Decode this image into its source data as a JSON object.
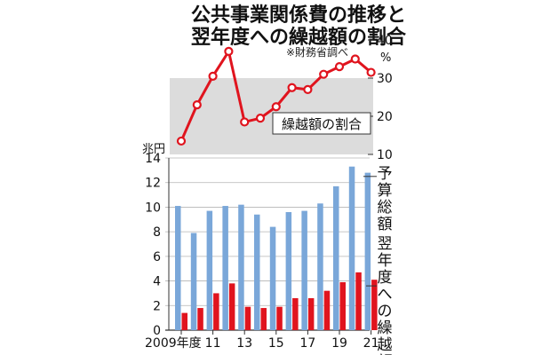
{
  "chart_data": [
    {
      "type": "line",
      "title": [
        "公共事業関係費の",
        "翌年度への繰越額の割合"
      ],
      "title_connector": "推移と",
      "note": "※財務省調べ",
      "series": [
        {
          "name": "繰越額の割合",
          "color": "#e0141e",
          "values": [
            13.5,
            23,
            30.5,
            37,
            18.5,
            19.5,
            22.5,
            27.5,
            27,
            31,
            33,
            35,
            31.5
          ]
        }
      ],
      "x": [
        2009,
        2010,
        2011,
        2012,
        2013,
        2014,
        2015,
        2016,
        2017,
        2018,
        2019,
        2020,
        2021
      ],
      "ylim": [
        10,
        40
      ],
      "yticks": [
        "10",
        "20",
        "30",
        "40"
      ],
      "yunit": "%",
      "shaded_bands": [
        [
          20,
          30
        ],
        [
          10,
          20
        ]
      ]
    },
    {
      "type": "bar",
      "yunit": "兆円",
      "ylim": [
        0,
        14
      ],
      "yticks": [
        "0",
        "2",
        "4",
        "6",
        "8",
        "10",
        "12",
        "14"
      ],
      "x": [
        2009,
        2010,
        2011,
        2012,
        2013,
        2014,
        2015,
        2016,
        2017,
        2018,
        2019,
        2020,
        2021
      ],
      "xticks": [
        "2009年度",
        "11",
        "13",
        "15",
        "17",
        "19",
        "21"
      ],
      "series": [
        {
          "name": "予算総額",
          "color": "#7aa7d9",
          "values": [
            10.1,
            7.9,
            9.7,
            10.1,
            10.2,
            9.4,
            8.4,
            9.6,
            9.7,
            10.3,
            11.7,
            13.3,
            12.8
          ]
        },
        {
          "name": "翌年度への繰越額",
          "color": "#e0141e",
          "values": [
            1.4,
            1.8,
            3.0,
            3.8,
            1.9,
            1.8,
            1.9,
            2.6,
            2.6,
            3.2,
            3.9,
            4.7,
            4.1
          ]
        }
      ]
    }
  ]
}
